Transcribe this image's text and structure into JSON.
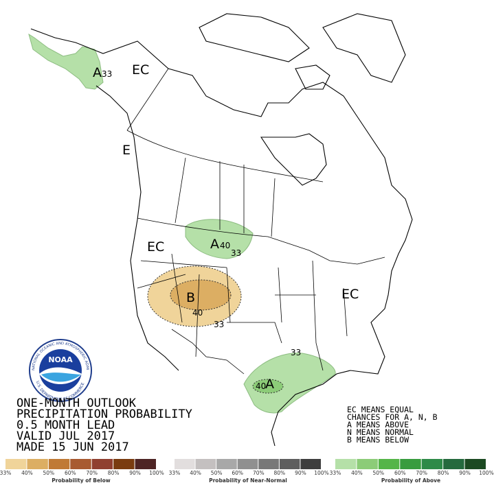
{
  "title_block": {
    "lines": [
      "ONE-MONTH OUTLOOK",
      "PRECIPITATION PROBABILITY",
      "0.5 MONTH LEAD",
      "VALID JUL 2017",
      "MADE 15 JUN 2017"
    ]
  },
  "legend_notes": [
    "EC MEANS EQUAL",
    "CHANCES FOR A, N, B",
    "A MEANS ABOVE",
    "N MEANS NORMAL",
    "B MEANS BELOW"
  ],
  "map_labels": [
    "A",
    "33",
    "EC",
    "E",
    "EC",
    "A",
    "40",
    "33",
    "B",
    "40",
    "33",
    "33",
    "40",
    "A",
    "EC"
  ],
  "logo": {
    "name": "NOAA",
    "ring_top": "NATIONAL OCEANIC AND ATMOSPHERIC ADMINISTRATION",
    "ring_bottom": "U.S. DEPARTMENT OF COMMERCE"
  },
  "colorbars": [
    {
      "caption": "Probability of Below",
      "labels": [
        "33%",
        "40%",
        "50%",
        "60%",
        "70%",
        "80%",
        "90%",
        "100%"
      ],
      "colors": [
        "#f0d49a",
        "#dcae63",
        "#c07a35",
        "#a85a30",
        "#904030",
        "#7a3c10",
        "#4e2424"
      ]
    },
    {
      "caption": "Probability of Near-Normal",
      "labels": [
        "33%",
        "40%",
        "50%",
        "60%",
        "70%",
        "80%",
        "90%",
        "100%"
      ],
      "colors": [
        "#e2dede",
        "#c4c0c0",
        "#a8a8a8",
        "#909090",
        "#787878",
        "#5e5e5e",
        "#3e3e3e"
      ]
    },
    {
      "caption": "Probability of Above",
      "labels": [
        "33%",
        "40%",
        "50%",
        "60%",
        "70%",
        "80%",
        "90%",
        "100%"
      ],
      "colors": [
        "#b5e0a8",
        "#8ccc78",
        "#55b548",
        "#389c3e",
        "#2e8a48",
        "#256a3e",
        "#1c4a22"
      ]
    }
  ]
}
